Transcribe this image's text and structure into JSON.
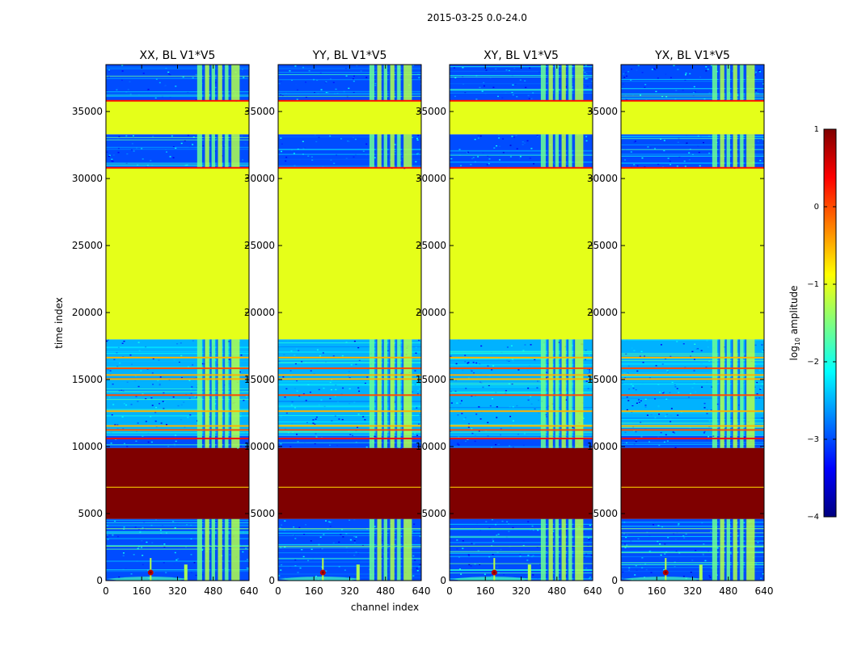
{
  "figure": {
    "suptitle": "2015-03-25 0.0-24.0",
    "xlabel": "channel index",
    "ylabel": "time index"
  },
  "colorbar": {
    "label_main": "log",
    "label_sub": "10",
    "label_end": " amplitude",
    "min": -4,
    "max": 1,
    "ticks": [
      1,
      0,
      -1,
      -2,
      -3,
      -4
    ],
    "tick_labels": [
      "1",
      "0",
      "−1",
      "−2",
      "−3",
      "−4"
    ],
    "colormap": "jet",
    "colors": [
      "#00007f",
      "#0000ff",
      "#007fff",
      "#00ffff",
      "#7fff7f",
      "#ffff00",
      "#ff7f00",
      "#ff0000",
      "#7f0000"
    ]
  },
  "chart_data": {
    "type": "heatmap",
    "x_range": [
      0,
      640
    ],
    "y_range": [
      0,
      38500
    ],
    "xticks": [
      0,
      160,
      320,
      480,
      640
    ],
    "yticks": [
      0,
      5000,
      10000,
      15000,
      20000,
      25000,
      30000,
      35000
    ],
    "value_bands_log10": [
      {
        "t_start": 0,
        "t_end": 4600,
        "level": "noise",
        "value": -3.0
      },
      {
        "t_start": 4600,
        "t_end": 9900,
        "level": "saturated",
        "value": 1.0
      },
      {
        "t_start": 9900,
        "t_end": 10800,
        "level": "noise",
        "value": -3.0
      },
      {
        "t_start": 10800,
        "t_end": 18000,
        "level": "noise-with-bright-rows",
        "value": -2.5
      },
      {
        "t_start": 18000,
        "t_end": 30800,
        "level": "flagged",
        "value": -1.0
      },
      {
        "t_start": 30800,
        "t_end": 33300,
        "level": "noise",
        "value": -3.0
      },
      {
        "t_start": 33300,
        "t_end": 35800,
        "level": "flagged",
        "value": -1.0
      },
      {
        "t_start": 35800,
        "t_end": 38500,
        "level": "noise",
        "value": -3.0
      }
    ],
    "panels": [
      {
        "title": "XX, BL V1*V5",
        "polarization": "XX",
        "baseline": "V1*V5"
      },
      {
        "title": "YY, BL V1*V5",
        "polarization": "YY",
        "baseline": "V1*V5"
      },
      {
        "title": "XY, BL V1*V5",
        "polarization": "XY",
        "baseline": "V1*V5"
      },
      {
        "title": "YX, BL V1*V5",
        "polarization": "YX",
        "baseline": "V1*V5"
      }
    ]
  }
}
